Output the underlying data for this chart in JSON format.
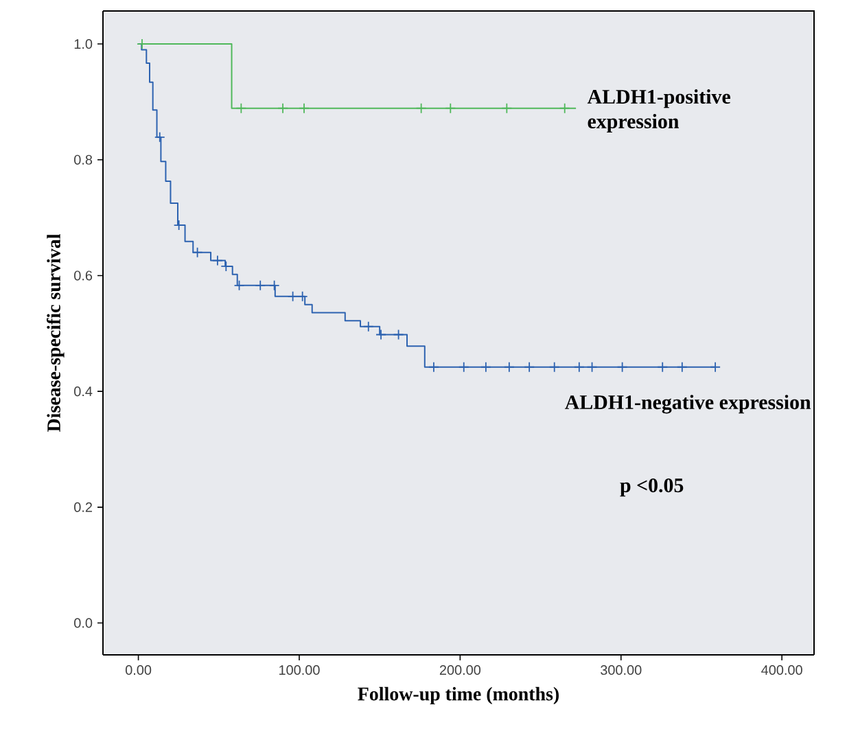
{
  "chart_data": {
    "type": "step",
    "xlabel": "Follow-up time (months)",
    "ylabel": "Disease-specific survival",
    "xlim": [
      -22,
      420
    ],
    "ylim": [
      -0.055,
      1.057
    ],
    "xticks": [
      {
        "value": 0,
        "label": "0.00"
      },
      {
        "value": 100,
        "label": "100.00"
      },
      {
        "value": 200,
        "label": "200.00"
      },
      {
        "value": 300,
        "label": "300.00"
      },
      {
        "value": 400,
        "label": "400.00"
      }
    ],
    "yticks": [
      {
        "value": 0,
        "label": "0.0"
      },
      {
        "value": 0.2,
        "label": "0.2"
      },
      {
        "value": 0.4,
        "label": "0.4"
      },
      {
        "value": 0.6,
        "label": "0.6"
      },
      {
        "value": 0.8,
        "label": "0.8"
      },
      {
        "value": 1.0,
        "label": "1.0"
      }
    ],
    "grid": false,
    "legend": false,
    "marker": "none",
    "annotations": [
      "p <0.05"
    ],
    "series": [
      {
        "name": "ALDH1-positive expression",
        "color": "#4fb85a",
        "x": [
          0,
          58,
          272
        ],
        "values": [
          1.0,
          0.889,
          0.889
        ]
      },
      {
        "name": "ALDH1-negative expression",
        "color": "#2c62b0",
        "x": [
          0,
          2,
          5,
          7,
          9,
          11.5,
          14,
          17,
          20,
          24.5,
          29,
          34,
          45,
          54,
          58.5,
          61.5,
          85,
          103.5,
          108,
          128.5,
          138,
          150,
          167,
          178,
          358.5
        ],
        "values": [
          1.0,
          0.99,
          0.967,
          0.934,
          0.886,
          0.839,
          0.797,
          0.763,
          0.725,
          0.687,
          0.659,
          0.64,
          0.626,
          0.616,
          0.602,
          0.583,
          0.564,
          0.55,
          0.536,
          0.522,
          0.512,
          0.498,
          0.478,
          0.442,
          0.442
        ]
      },
      {
        "type": "scatter",
        "marker": "cross",
        "color": "#4fb85a",
        "x": [
          2.3,
          63.9,
          89.8,
          103,
          175.8,
          194,
          229,
          265
        ],
        "values": [
          1.0,
          0.889,
          0.889,
          0.889,
          0.889,
          0.889,
          0.889,
          0.889
        ]
      },
      {
        "type": "scatter",
        "marker": "cross",
        "color": "#2c62b0",
        "x": [
          13.3,
          25.2,
          36.7,
          49.2,
          54.5,
          62.7,
          75.8,
          84.5,
          96,
          102,
          143,
          150.8,
          161.7,
          183.6,
          202.3,
          216,
          230.5,
          243,
          258.6,
          274,
          282,
          300.8,
          325.8,
          338,
          358.6
        ],
        "values": [
          0.839,
          0.687,
          0.64,
          0.626,
          0.616,
          0.583,
          0.583,
          0.583,
          0.564,
          0.564,
          0.512,
          0.498,
          0.498,
          0.442,
          0.442,
          0.442,
          0.442,
          0.442,
          0.442,
          0.442,
          0.442,
          0.442,
          0.442,
          0.442,
          0.442
        ]
      }
    ]
  }
}
